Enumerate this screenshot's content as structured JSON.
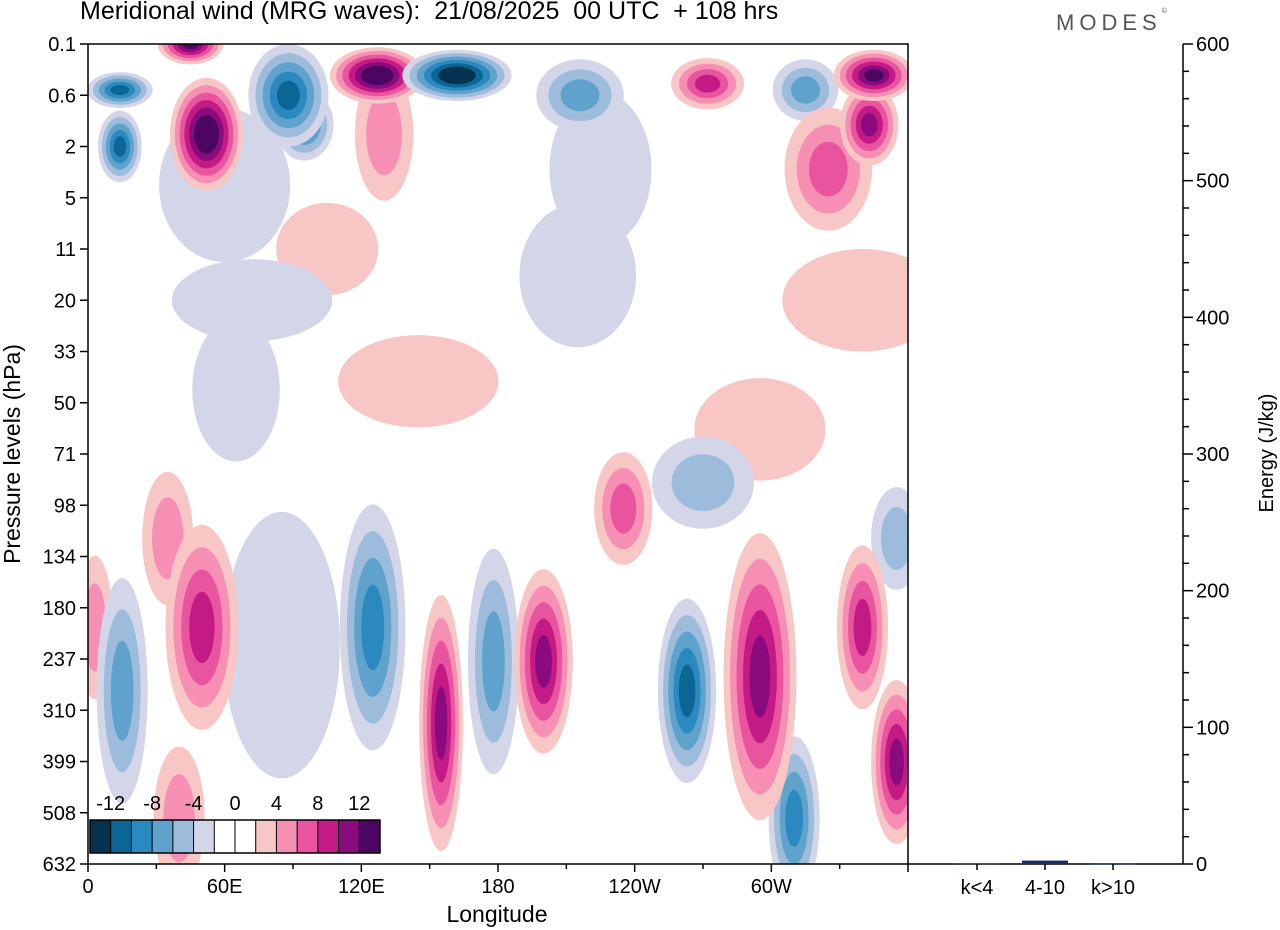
{
  "header": {
    "title": "Meridional wind (MRG waves):  21/08/2025  00 UTC  + 108 hrs",
    "brand": "MODES",
    "brand_mark": "©"
  },
  "colors": {
    "palette": [
      "#07324f",
      "#0c6695",
      "#2b89bf",
      "#5fa2cc",
      "#9dbcdb",
      "#d3d6e8",
      "#ffffff",
      "#ffffff",
      "#f8c6c5",
      "#f68fb3",
      "#e8549d",
      "#c41a86",
      "#8a0b7e",
      "#4a0660"
    ],
    "bar": "#1c2a66"
  },
  "chart_data": [
    {
      "type": "heatmap",
      "title": "Meridional wind (MRG waves)",
      "xlabel": "Longitude",
      "ylabel": "Pressure levels (hPa)",
      "x_ticks": [
        "0",
        "60E",
        "120E",
        "180",
        "120W",
        "60W"
      ],
      "x_range": [
        0,
        360
      ],
      "y_ticks": [
        "0.1",
        "0.6",
        "2",
        "5",
        "11",
        "20",
        "33",
        "50",
        "71",
        "98",
        "134",
        "180",
        "237",
        "310",
        "399",
        "508",
        "632"
      ],
      "colorbar": {
        "levels": [
          -14,
          -12,
          -10,
          -8,
          -6,
          -4,
          -2,
          0,
          2,
          4,
          6,
          8,
          10,
          12,
          14
        ],
        "labels": [
          "-12",
          "-8",
          "-4",
          "0",
          "4",
          "8",
          "12"
        ]
      },
      "features": [
        {
          "lon": 14,
          "level": 0.5,
          "value": -11,
          "dlon": 9,
          "dlev": 0.35
        },
        {
          "lon": 14,
          "level": 2,
          "value": -11,
          "dlon": 6,
          "dlev": 0.7
        },
        {
          "lon": 45,
          "level": 0.1,
          "value": 12,
          "dlon": 9,
          "dlev": 0.4
        },
        {
          "lon": 52,
          "level": 1.5,
          "value": 14,
          "dlon": 10,
          "dlev": 1.1
        },
        {
          "lon": 88,
          "level": 0.6,
          "value": -10,
          "dlon": 11,
          "dlev": 1.0
        },
        {
          "lon": 95,
          "level": 1.2,
          "value": -8,
          "dlon": 8,
          "dlev": 0.7
        },
        {
          "lon": 127,
          "level": 0.3,
          "value": 14,
          "dlon": 13,
          "dlev": 0.55
        },
        {
          "lon": 162,
          "level": 0.3,
          "value": -14,
          "dlon": 15,
          "dlev": 0.5
        },
        {
          "lon": 216,
          "level": 0.6,
          "value": -6,
          "dlon": 12,
          "dlev": 0.7
        },
        {
          "lon": 272,
          "level": 0.4,
          "value": 9,
          "dlon": 10,
          "dlev": 0.5
        },
        {
          "lon": 315,
          "level": 0.5,
          "value": -7,
          "dlon": 9,
          "dlev": 0.6
        },
        {
          "lon": 345,
          "level": 0.3,
          "value": 13,
          "dlon": 11,
          "dlev": 0.5
        },
        {
          "lon": 343,
          "level": 1.2,
          "value": 11,
          "dlon": 8,
          "dlev": 0.8
        },
        {
          "lon": 325,
          "level": 3,
          "value": 7,
          "dlon": 12,
          "dlev": 1.2
        },
        {
          "lon": 130,
          "level": 1.5,
          "value": 4,
          "dlon": 8,
          "dlev": 1.3
        },
        {
          "lon": 225,
          "level": 3,
          "value": -3,
          "dlon": 14,
          "dlev": 1.5
        },
        {
          "lon": 60,
          "level": 4,
          "value": -3,
          "dlon": 18,
          "dlev": 1.5
        },
        {
          "lon": 105,
          "level": 11,
          "value": 3,
          "dlon": 14,
          "dlev": 0.9
        },
        {
          "lon": 215,
          "level": 15,
          "value": -3,
          "dlon": 16,
          "dlev": 1.4
        },
        {
          "lon": 340,
          "level": 20,
          "value": 3,
          "dlon": 22,
          "dlev": 1.0
        },
        {
          "lon": 72,
          "level": 20,
          "value": -3,
          "dlon": 22,
          "dlev": 0.8
        },
        {
          "lon": 65,
          "level": 45,
          "value": -3,
          "dlon": 12,
          "dlev": 1.4
        },
        {
          "lon": 145,
          "level": 42,
          "value": 3,
          "dlon": 22,
          "dlev": 0.9
        },
        {
          "lon": 295,
          "level": 60,
          "value": 3,
          "dlon": 18,
          "dlev": 1.0
        },
        {
          "lon": 270,
          "level": 85,
          "value": -4,
          "dlon": 14,
          "dlev": 0.9
        },
        {
          "lon": 235,
          "level": 100,
          "value": 6,
          "dlon": 8,
          "dlev": 1.1
        },
        {
          "lon": 35,
          "level": 120,
          "value": 5,
          "dlon": 7,
          "dlev": 1.3
        },
        {
          "lon": 15,
          "level": 280,
          "value": -6,
          "dlon": 7,
          "dlev": 2.2
        },
        {
          "lon": 50,
          "level": 200,
          "value": 8,
          "dlon": 10,
          "dlev": 2.0
        },
        {
          "lon": 40,
          "level": 520,
          "value": 5,
          "dlon": 7,
          "dlev": 1.4
        },
        {
          "lon": 85,
          "level": 220,
          "value": -3,
          "dlon": 16,
          "dlev": 2.6
        },
        {
          "lon": 125,
          "level": 200,
          "value": -9,
          "dlon": 9,
          "dlev": 2.4
        },
        {
          "lon": 155,
          "level": 330,
          "value": 11,
          "dlon": 6,
          "dlev": 2.5
        },
        {
          "lon": 178,
          "level": 240,
          "value": -6,
          "dlon": 7,
          "dlev": 2.2
        },
        {
          "lon": 200,
          "level": 240,
          "value": 11,
          "dlon": 8,
          "dlev": 1.8
        },
        {
          "lon": 263,
          "level": 280,
          "value": -11,
          "dlon": 8,
          "dlev": 1.8
        },
        {
          "lon": 295,
          "level": 260,
          "value": 10,
          "dlon": 10,
          "dlev": 2.8
        },
        {
          "lon": 310,
          "level": 520,
          "value": -8,
          "dlon": 7,
          "dlev": 1.6
        },
        {
          "lon": 340,
          "level": 200,
          "value": 9,
          "dlon": 7,
          "dlev": 1.6
        },
        {
          "lon": 355,
          "level": 400,
          "value": 10,
          "dlon": 7,
          "dlev": 1.6
        },
        {
          "lon": 3,
          "level": 200,
          "value": 4,
          "dlon": 5,
          "dlev": 1.4
        },
        {
          "lon": 355,
          "level": 120,
          "value": -5,
          "dlon": 7,
          "dlev": 1.0
        }
      ]
    },
    {
      "type": "bar",
      "categories": [
        "k<4",
        "4-10",
        "k>10"
      ],
      "values": [
        0.4,
        2.5,
        0.2
      ],
      "ylabel": "Energy (J/kg)",
      "ylim": [
        0,
        600
      ],
      "y_ticks": [
        "0",
        "100",
        "200",
        "300",
        "400",
        "500",
        "600"
      ]
    }
  ]
}
